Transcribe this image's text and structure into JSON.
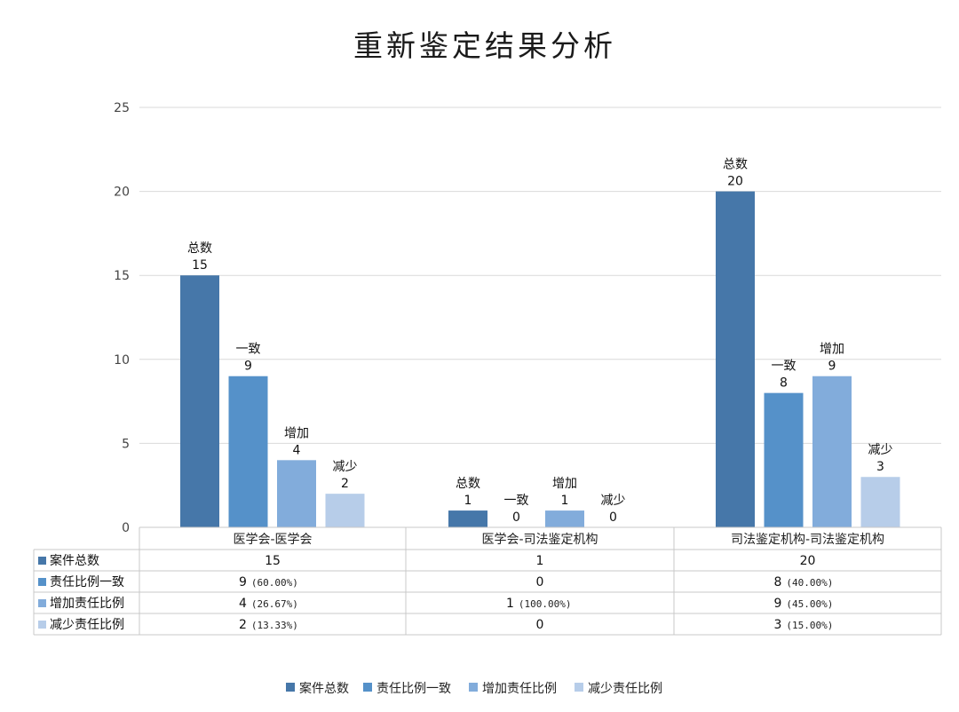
{
  "chart_data": {
    "type": "bar",
    "title": "重新鉴定结果分析",
    "categories": [
      "医学会-医学会",
      "医学会-司法鉴定机构",
      "司法鉴定机构-司法鉴定机构"
    ],
    "ylim": [
      0,
      25
    ],
    "yticks": [
      0,
      5,
      10,
      15,
      20,
      25
    ],
    "grid": true,
    "legend_position": "bottom",
    "series": [
      {
        "name": "案件总数",
        "short": "总数",
        "color": "#4677a9",
        "values": [
          15,
          1,
          20
        ],
        "cells": [
          "15",
          "1",
          "20"
        ],
        "pcts": [
          "",
          "",
          ""
        ]
      },
      {
        "name": "责任比例一致",
        "short": "一致",
        "color": "#5591c9",
        "values": [
          9,
          0,
          8
        ],
        "cells": [
          "9",
          "0",
          "8"
        ],
        "pcts": [
          "(60.00%)",
          "",
          "(40.00%)"
        ]
      },
      {
        "name": "增加责任比例",
        "short": "增加",
        "color": "#82acdb",
        "values": [
          4,
          1,
          9
        ],
        "cells": [
          "4",
          "1",
          "9"
        ],
        "pcts": [
          "(26.67%)",
          "(100.00%)",
          "(45.00%)"
        ]
      },
      {
        "name": "减少责任比例",
        "short": "减少",
        "color": "#b7cde9",
        "values": [
          2,
          0,
          3
        ],
        "cells": [
          "2",
          "0",
          "3"
        ],
        "pcts": [
          "(13.33%)",
          "",
          "(15.00%)"
        ]
      }
    ]
  }
}
